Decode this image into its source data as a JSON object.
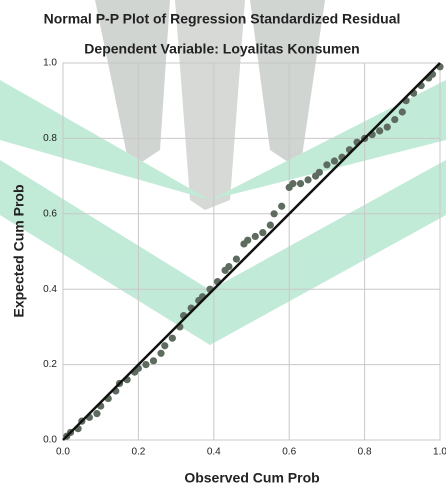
{
  "chart_data": {
    "type": "scatter",
    "title": "Normal P-P Plot of Regression Standardized Residual",
    "subtitle": "Dependent Variable: Loyalitas Konsumen",
    "x_label": "Observed Cum Prob",
    "y_label": "Expected Cum Prob",
    "xlim": [
      0,
      1
    ],
    "ylim": [
      0,
      1
    ],
    "xticks": [
      {
        "value": 0,
        "label": "0.0"
      },
      {
        "value": 0.2,
        "label": "0.2"
      },
      {
        "value": 0.4,
        "label": "0.4"
      },
      {
        "value": 0.6,
        "label": "0.6"
      },
      {
        "value": 0.8,
        "label": "0.8"
      },
      {
        "value": 1,
        "label": "1.0"
      }
    ],
    "yticks": [
      {
        "value": 0,
        "label": "0.0"
      },
      {
        "value": 0.2,
        "label": "0.2"
      },
      {
        "value": 0.4,
        "label": "0.4"
      },
      {
        "value": 0.6,
        "label": "0.6"
      },
      {
        "value": 0.8,
        "label": "0.8"
      },
      {
        "value": 1,
        "label": "1.0"
      }
    ],
    "grid": true,
    "reference_line": true,
    "color": "#5e6b5f",
    "x": [
      0.01,
      0.02,
      0.04,
      0.05,
      0.07,
      0.09,
      0.1,
      0.12,
      0.14,
      0.15,
      0.17,
      0.19,
      0.2,
      0.22,
      0.24,
      0.26,
      0.27,
      0.29,
      0.31,
      0.32,
      0.34,
      0.36,
      0.37,
      0.39,
      0.41,
      0.43,
      0.44,
      0.46,
      0.48,
      0.49,
      0.51,
      0.53,
      0.55,
      0.56,
      0.58,
      0.6,
      0.61,
      0.63,
      0.65,
      0.67,
      0.68,
      0.7,
      0.72,
      0.74,
      0.76,
      0.78,
      0.8,
      0.82,
      0.84,
      0.86,
      0.88,
      0.9,
      0.91,
      0.93,
      0.95,
      0.97,
      0.98,
      1.0
    ],
    "y": [
      0.01,
      0.02,
      0.03,
      0.05,
      0.06,
      0.07,
      0.09,
      0.11,
      0.13,
      0.15,
      0.16,
      0.18,
      0.19,
      0.2,
      0.21,
      0.23,
      0.25,
      0.27,
      0.3,
      0.33,
      0.35,
      0.37,
      0.38,
      0.4,
      0.42,
      0.45,
      0.46,
      0.48,
      0.52,
      0.53,
      0.54,
      0.55,
      0.57,
      0.6,
      0.62,
      0.67,
      0.68,
      0.68,
      0.69,
      0.7,
      0.71,
      0.73,
      0.74,
      0.75,
      0.77,
      0.79,
      0.8,
      0.81,
      0.82,
      0.83,
      0.85,
      0.87,
      0.9,
      0.92,
      0.94,
      0.96,
      0.97,
      0.99
    ]
  }
}
